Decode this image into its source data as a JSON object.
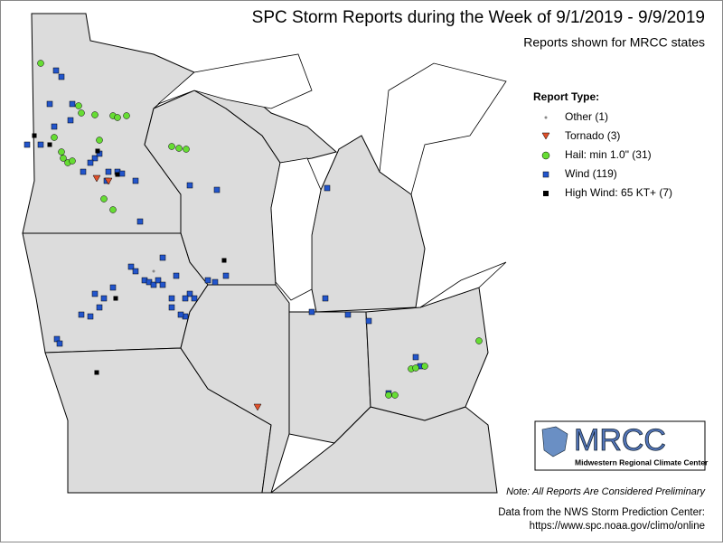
{
  "title": "SPC Storm Reports during the Week of 9/1/2019 - 9/9/2019",
  "subtitle": "Reports shown for MRCC states",
  "legend": {
    "title": "Report Type:",
    "items": [
      "Other (1)",
      "Tornado (3)",
      "Hail: min 1.0\" (31)",
      "Wind (119)",
      "High Wind: 65 KT+ (7)"
    ]
  },
  "logo": {
    "text": "MRCC",
    "caption": "Midwestern Regional Climate Center"
  },
  "note": "Note: All Reports Are Considered Preliminary",
  "source": [
    "Data from the NWS Storm Prediction Center:",
    "https://www.spc.noaa.gov/climo/online"
  ]
}
